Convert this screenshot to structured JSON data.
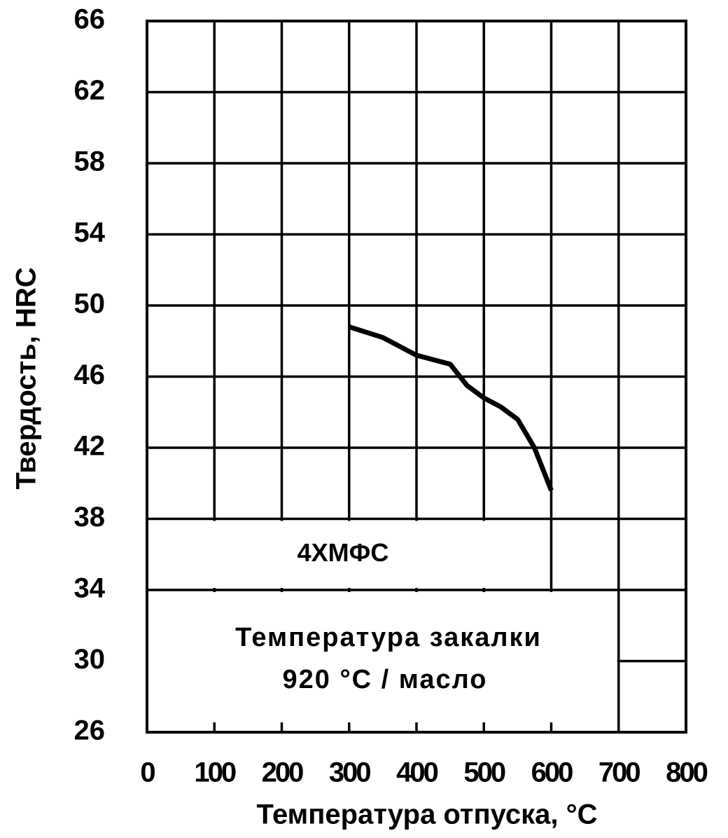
{
  "chart_data": {
    "type": "line",
    "x_label": "Температура отпуска, °С",
    "y_label": "Твердость, HRC",
    "annotations": [
      "4ХМФС",
      "Температура закалки",
      "920 °С / масло"
    ],
    "x": [
      300,
      350,
      400,
      450,
      475,
      500,
      525,
      550,
      575,
      600
    ],
    "series": [
      {
        "color": "#000000",
        "values": [
          48.8,
          48.2,
          47.2,
          46.7,
          45.5,
          44.8,
          44.3,
          43.6,
          42.0,
          39.6
        ]
      }
    ],
    "xlim": [
      0,
      800
    ],
    "xticks": [
      0,
      100,
      200,
      300,
      400,
      500,
      600,
      700,
      800
    ],
    "ylim": [
      26,
      66
    ],
    "yticks": [
      26,
      30,
      34,
      38,
      42,
      46,
      50,
      54,
      58,
      62,
      66
    ],
    "grid": true
  }
}
